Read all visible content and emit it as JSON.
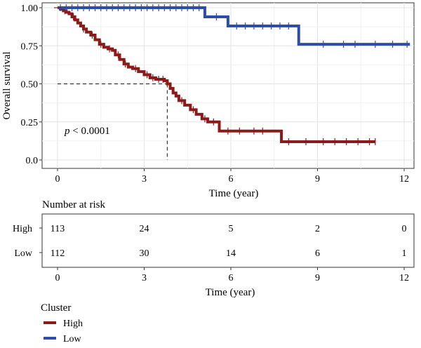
{
  "chart_data": {
    "type": "line",
    "subtype": "kaplan-meier",
    "ylabel": "Overall survival",
    "xlabel": "Time (year)",
    "xlim": [
      0,
      12.2
    ],
    "ylim": [
      0,
      1.02
    ],
    "x_ticks": [
      0,
      3,
      6,
      9,
      12
    ],
    "y_ticks": [
      "0.0",
      "0.25",
      "0.50",
      "0.75",
      "1.00"
    ],
    "y_tick_values": [
      0,
      0.25,
      0.5,
      0.75,
      1.0
    ],
    "grid": true,
    "annotation": {
      "italic": "p",
      "rest": " < 0.0001"
    },
    "median_line": {
      "x": 3.8,
      "y": 0.5
    },
    "series": [
      {
        "name": "High",
        "color": "#8B1A1A",
        "x": [
          0,
          0.1,
          0.2,
          0.3,
          0.4,
          0.5,
          0.6,
          0.7,
          0.8,
          0.9,
          1.0,
          1.15,
          1.3,
          1.45,
          1.6,
          1.75,
          1.9,
          2.0,
          2.15,
          2.3,
          2.45,
          2.6,
          2.8,
          3.0,
          3.2,
          3.4,
          3.6,
          3.7,
          3.8,
          3.9,
          4.0,
          4.1,
          4.2,
          4.4,
          4.6,
          4.8,
          5.0,
          5.2,
          5.6,
          6.0,
          7.0,
          7.75,
          8.5,
          9.5,
          10.0,
          11.0
        ],
        "y": [
          1.0,
          0.99,
          0.98,
          0.97,
          0.96,
          0.94,
          0.92,
          0.9,
          0.88,
          0.86,
          0.84,
          0.82,
          0.79,
          0.76,
          0.74,
          0.73,
          0.72,
          0.69,
          0.66,
          0.63,
          0.61,
          0.6,
          0.58,
          0.56,
          0.54,
          0.53,
          0.53,
          0.52,
          0.5,
          0.47,
          0.44,
          0.42,
          0.39,
          0.36,
          0.33,
          0.3,
          0.27,
          0.25,
          0.19,
          0.19,
          0.19,
          0.12,
          0.12,
          0.12,
          0.12,
          0.12
        ],
        "censor_x": [
          0.25,
          0.55,
          0.9,
          1.2,
          1.5,
          1.8,
          2.1,
          2.35,
          2.7,
          3.1,
          3.3,
          3.5,
          3.65,
          4.3,
          4.7,
          5.1,
          5.4,
          5.9,
          6.3,
          6.8,
          7.1,
          8.0,
          8.6,
          9.2,
          9.6,
          10.0,
          10.4,
          10.8,
          11.0
        ],
        "censor_y": [
          0.98,
          0.94,
          0.86,
          0.82,
          0.76,
          0.73,
          0.69,
          0.63,
          0.6,
          0.56,
          0.54,
          0.53,
          0.53,
          0.39,
          0.33,
          0.27,
          0.25,
          0.19,
          0.19,
          0.19,
          0.19,
          0.12,
          0.12,
          0.12,
          0.12,
          0.12,
          0.12,
          0.12,
          0.12
        ]
      },
      {
        "name": "Low",
        "color": "#2E4DA7",
        "x": [
          0,
          5.1,
          5.9,
          8.35,
          12.2
        ],
        "y": [
          1.0,
          0.94,
          0.88,
          0.76,
          0.76
        ],
        "censor_x": [
          0.1,
          0.3,
          0.5,
          0.7,
          0.9,
          1.1,
          1.3,
          1.5,
          1.7,
          1.9,
          2.1,
          2.3,
          2.5,
          2.7,
          2.9,
          3.1,
          3.3,
          3.5,
          3.7,
          3.9,
          4.1,
          4.3,
          4.5,
          4.7,
          4.9,
          5.5,
          6.2,
          6.5,
          6.8,
          7.1,
          7.4,
          7.7,
          8.0,
          9.2,
          9.9,
          10.3,
          11.0,
          11.6,
          12.1
        ],
        "censor_y": [
          1.0,
          1.0,
          1.0,
          1.0,
          1.0,
          1.0,
          1.0,
          1.0,
          1.0,
          1.0,
          1.0,
          1.0,
          1.0,
          1.0,
          1.0,
          1.0,
          1.0,
          1.0,
          1.0,
          1.0,
          1.0,
          1.0,
          1.0,
          1.0,
          1.0,
          0.94,
          0.88,
          0.88,
          0.88,
          0.88,
          0.88,
          0.88,
          0.88,
          0.76,
          0.76,
          0.76,
          0.76,
          0.76,
          0.76
        ]
      }
    ],
    "risk_table": {
      "title": "Number at risk",
      "xlabel": "Time (year)",
      "x_ticks": [
        0,
        3,
        6,
        9,
        12
      ],
      "rows": [
        {
          "label": "High",
          "values": [
            113,
            24,
            5,
            2,
            0
          ]
        },
        {
          "label": "Low",
          "values": [
            112,
            30,
            14,
            6,
            1
          ]
        }
      ]
    },
    "legend": {
      "title": "Cluster",
      "position": "bottom-left",
      "entries": [
        {
          "label": "High",
          "color": "#8B1A1A"
        },
        {
          "label": "Low",
          "color": "#2E4DA7"
        }
      ]
    }
  }
}
